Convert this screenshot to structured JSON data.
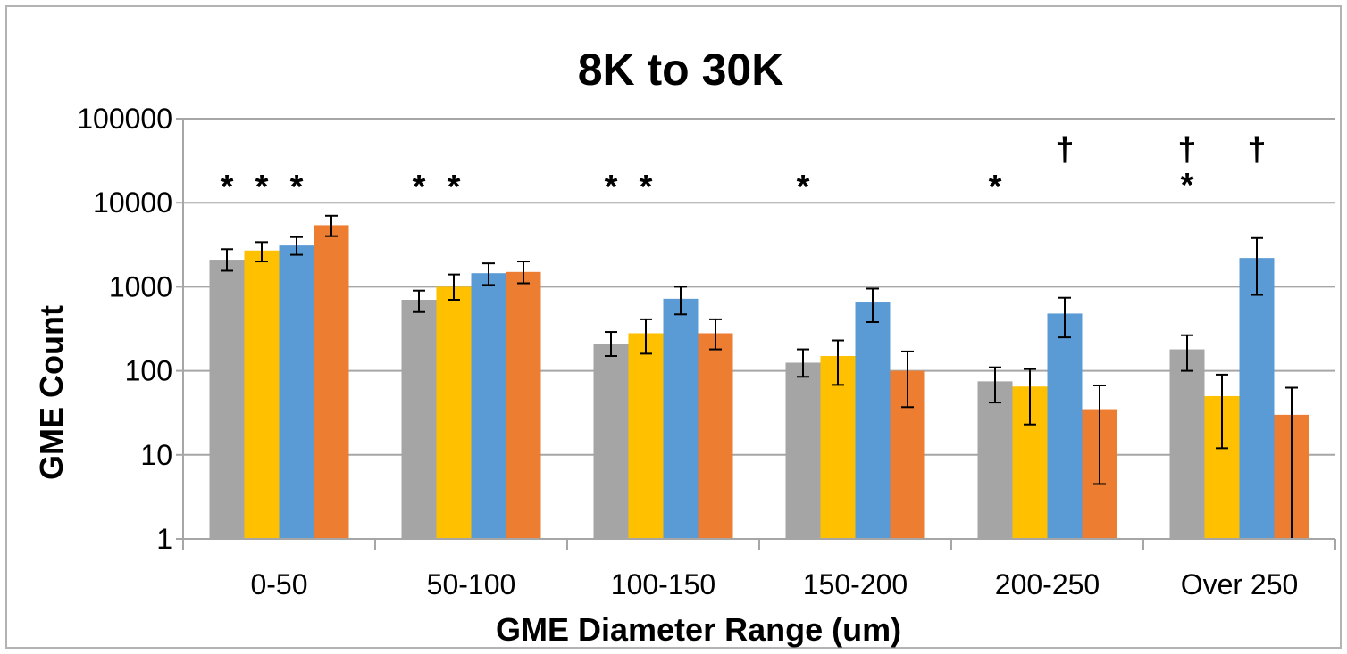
{
  "chart_data": {
    "type": "bar",
    "title": "8K to 30K",
    "xlabel": "GME Diameter Range (um)",
    "ylabel": "GME Count",
    "yscale": "log",
    "ylim": [
      1,
      100000
    ],
    "yticks": [
      "1",
      "10",
      "100",
      "1000",
      "10000",
      "100000"
    ],
    "grid": true,
    "categories": [
      "0-50",
      "50-100",
      "100-150",
      "150-200",
      "200-250",
      "Over 250"
    ],
    "series": [
      {
        "color": "#a5a5a5",
        "values": [
          2100,
          700,
          210,
          125,
          75,
          180
        ],
        "err_low": [
          1550,
          500,
          150,
          85,
          42,
          100
        ],
        "err_high": [
          2800,
          900,
          290,
          180,
          110,
          265
        ]
      },
      {
        "color": "#ffc000",
        "values": [
          2700,
          1000,
          280,
          150,
          65,
          50
        ],
        "err_low": [
          2000,
          700,
          160,
          68,
          23,
          12
        ],
        "err_high": [
          3400,
          1400,
          410,
          230,
          105,
          90
        ]
      },
      {
        "color": "#5b9bd5",
        "values": [
          3100,
          1450,
          720,
          650,
          480,
          2200
        ],
        "err_low": [
          2400,
          1050,
          470,
          380,
          250,
          800
        ],
        "err_high": [
          3900,
          1900,
          1000,
          950,
          740,
          3800
        ]
      },
      {
        "color": "#ed7d31",
        "values": [
          5400,
          1500,
          280,
          100,
          35,
          30
        ],
        "err_low": [
          4000,
          1100,
          180,
          37,
          4.5,
          1
        ],
        "err_high": [
          7000,
          2000,
          410,
          170,
          67,
          63
        ]
      }
    ],
    "annotations": [
      {
        "text": "*",
        "category": 0,
        "series": 0
      },
      {
        "text": "*",
        "category": 0,
        "series": 1
      },
      {
        "text": "*",
        "category": 0,
        "series": 2
      },
      {
        "text": "*",
        "category": 1,
        "series": 0
      },
      {
        "text": "*",
        "category": 1,
        "series": 1
      },
      {
        "text": "*",
        "category": 2,
        "series": 0
      },
      {
        "text": "*",
        "category": 2,
        "series": 1
      },
      {
        "text": "*",
        "category": 3,
        "series": 0
      },
      {
        "text": "*",
        "category": 4,
        "series": 0
      },
      {
        "text": "†",
        "category": 4,
        "series": 2
      },
      {
        "text": "†",
        "category": 5,
        "series": 0
      },
      {
        "text": "*",
        "category": 5,
        "series": 0
      },
      {
        "text": "†",
        "category": 5,
        "series": 2
      }
    ]
  }
}
